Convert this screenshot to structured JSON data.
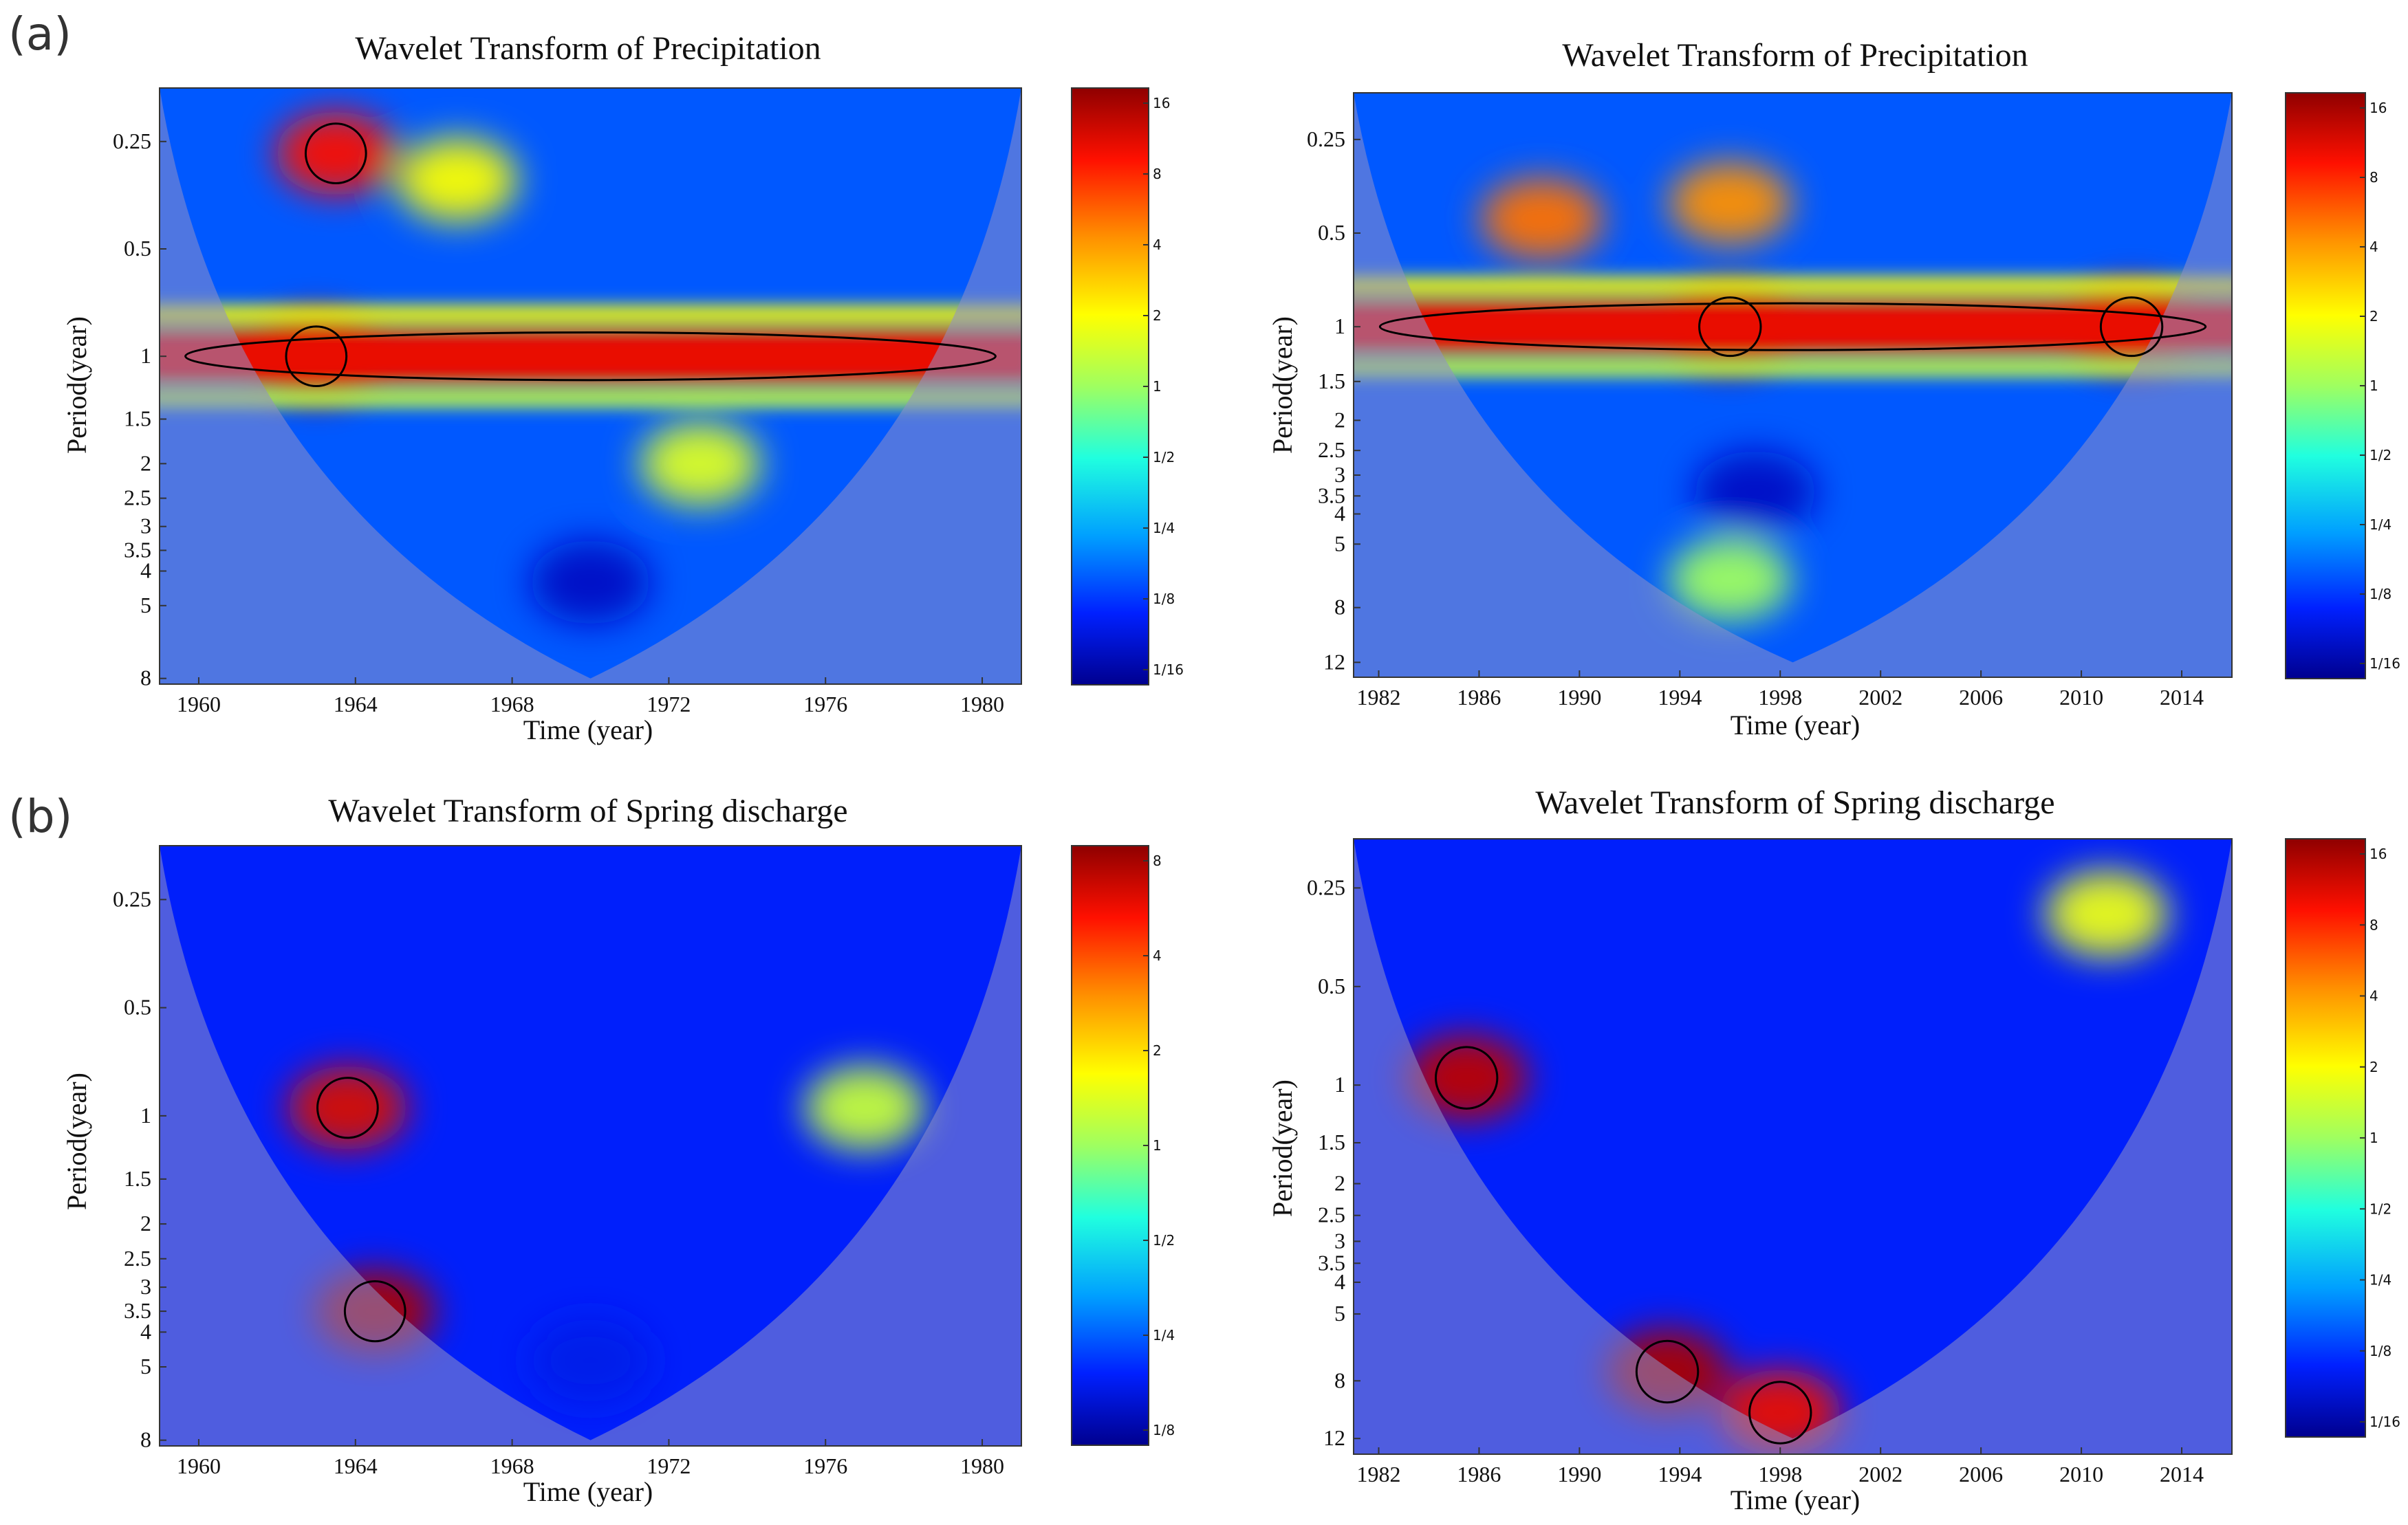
{
  "figure": {
    "panel_labels": [
      "(a)",
      "(b)"
    ],
    "colors": {
      "jet": [
        "#00008f",
        "#0020ff",
        "#00a0ff",
        "#20ffdf",
        "#9fff60",
        "#ffff00",
        "#ff9000",
        "#ff1000",
        "#8f0000"
      ],
      "outside_cone": "#8f8fc8",
      "contour": "#000000"
    }
  },
  "chart_data": [
    {
      "id": "a-left",
      "type": "heatmap",
      "title": "Wavelet Transform of Precipitation",
      "xlabel": "Time (year)",
      "ylabel": "Period(year)",
      "xlim": [
        1959,
        1981
      ],
      "xticks": [
        "1960",
        "1964",
        "1968",
        "1972",
        "1976",
        "1980"
      ],
      "xtick_values": [
        1960,
        1964,
        1968,
        1972,
        1976,
        1980
      ],
      "ylim": [
        0.177,
        8.3
      ],
      "yticks": [
        "0.25",
        "0.5",
        "1",
        "1.5",
        "2",
        "2.5",
        "3",
        "3.5",
        "4",
        "5",
        "8"
      ],
      "ytick_values": [
        0.25,
        0.5,
        1,
        1.5,
        2,
        2.5,
        3,
        3.5,
        4,
        5,
        8
      ],
      "colorbar": {
        "ticks": [
          "16",
          "8",
          "4",
          "2",
          "1",
          "1/2",
          "1/4",
          "1/8",
          "1/16"
        ]
      },
      "features": [
        {
          "t": 1963.5,
          "p": 0.27,
          "v": 0.88
        },
        {
          "t": 1966.6,
          "p": 0.32,
          "v": 0.62
        },
        {
          "t": 1963.0,
          "p": 1.0,
          "v": 0.98
        },
        {
          "t": 1972.8,
          "p": 2.0,
          "v": 0.58
        },
        {
          "t": 1970.0,
          "p": 4.3,
          "v": 0.06
        }
      ],
      "band_period": 1.0,
      "coi_min_period": 8
    },
    {
      "id": "a-right",
      "type": "heatmap",
      "title": "Wavelet Transform of Precipitation",
      "xlabel": "Time (year)",
      "ylabel": "Period(year)",
      "xlim": [
        1981,
        2016
      ],
      "xticks": [
        "1982",
        "1986",
        "1990",
        "1994",
        "1998",
        "2002",
        "2006",
        "2010",
        "2014"
      ],
      "xtick_values": [
        1982,
        1986,
        1990,
        1994,
        1998,
        2002,
        2006,
        2010,
        2014
      ],
      "ylim": [
        0.177,
        13.4
      ],
      "yticks": [
        "0.25",
        "0.5",
        "1",
        "1.5",
        "2",
        "2.5",
        "3",
        "3.5",
        "4",
        "5",
        "8",
        "12"
      ],
      "ytick_values": [
        0.25,
        0.5,
        1,
        1.5,
        2,
        2.5,
        3,
        3.5,
        4,
        5,
        8,
        12
      ],
      "colorbar": {
        "ticks": [
          "16",
          "8",
          "4",
          "2",
          "1",
          "1/2",
          "1/4",
          "1/8",
          "1/16"
        ]
      },
      "features": [
        {
          "t": 1988.5,
          "p": 0.45,
          "v": 0.78
        },
        {
          "t": 1996.0,
          "p": 0.4,
          "v": 0.75
        },
        {
          "t": 1996.0,
          "p": 1.0,
          "v": 0.99
        },
        {
          "t": 2012.0,
          "p": 1.0,
          "v": 0.96
        },
        {
          "t": 1997.0,
          "p": 3.4,
          "v": 0.06
        },
        {
          "t": 1996.0,
          "p": 6.5,
          "v": 0.5
        }
      ],
      "band_period": 1.0,
      "coi_min_period": 12
    },
    {
      "id": "b-left",
      "type": "heatmap",
      "title": "Wavelet Transform of Spring discharge",
      "xlabel": "Time (year)",
      "ylabel": "Period(year)",
      "xlim": [
        1959,
        1981
      ],
      "xticks": [
        "1960",
        "1964",
        "1968",
        "1972",
        "1976",
        "1980"
      ],
      "xtick_values": [
        1960,
        1964,
        1968,
        1972,
        1976,
        1980
      ],
      "ylim": [
        0.177,
        8.3
      ],
      "yticks": [
        "0.25",
        "0.5",
        "1",
        "1.5",
        "2",
        "2.5",
        "3",
        "3.5",
        "4",
        "5",
        "8"
      ],
      "ytick_values": [
        0.25,
        0.5,
        1,
        1.5,
        2,
        2.5,
        3,
        3.5,
        4,
        5,
        8
      ],
      "colorbar": {
        "ticks": [
          "8",
          "4",
          "2",
          "1",
          "1/2",
          "1/4",
          "1/8"
        ]
      },
      "features": [
        {
          "t": 1963.8,
          "p": 0.95,
          "v": 0.92
        },
        {
          "t": 1964.5,
          "p": 3.5,
          "v": 0.97
        },
        {
          "t": 1970.0,
          "p": 4.8,
          "v": 0.1
        },
        {
          "t": 1977.0,
          "p": 0.95,
          "v": 0.55
        }
      ],
      "band_period": 0,
      "coi_min_period": 8
    },
    {
      "id": "b-right",
      "type": "heatmap",
      "title": "Wavelet Transform of Spring discharge",
      "xlabel": "Time (year)",
      "ylabel": "Period(year)",
      "xlim": [
        1981,
        2016
      ],
      "xticks": [
        "1982",
        "1986",
        "1990",
        "1994",
        "1998",
        "2002",
        "2006",
        "2010",
        "2014"
      ],
      "xtick_values": [
        1982,
        1986,
        1990,
        1994,
        1998,
        2002,
        2006,
        2010,
        2014
      ],
      "ylim": [
        0.177,
        13.4
      ],
      "yticks": [
        "0.25",
        "0.5",
        "1",
        "1.5",
        "2",
        "2.5",
        "3",
        "3.5",
        "4",
        "5",
        "8",
        "12"
      ],
      "ytick_values": [
        0.25,
        0.5,
        1,
        1.5,
        2,
        2.5,
        3,
        3.5,
        4,
        5,
        8,
        12
      ],
      "colorbar": {
        "ticks": [
          "16",
          "8",
          "4",
          "2",
          "1",
          "1/2",
          "1/4",
          "1/8",
          "1/16"
        ]
      },
      "features": [
        {
          "t": 1985.5,
          "p": 0.95,
          "v": 0.95
        },
        {
          "t": 1993.5,
          "p": 7.5,
          "v": 0.97
        },
        {
          "t": 1998.0,
          "p": 10.0,
          "v": 0.9
        },
        {
          "t": 2011.0,
          "p": 0.3,
          "v": 0.6
        }
      ],
      "band_period": 0,
      "coi_min_period": 12
    }
  ]
}
